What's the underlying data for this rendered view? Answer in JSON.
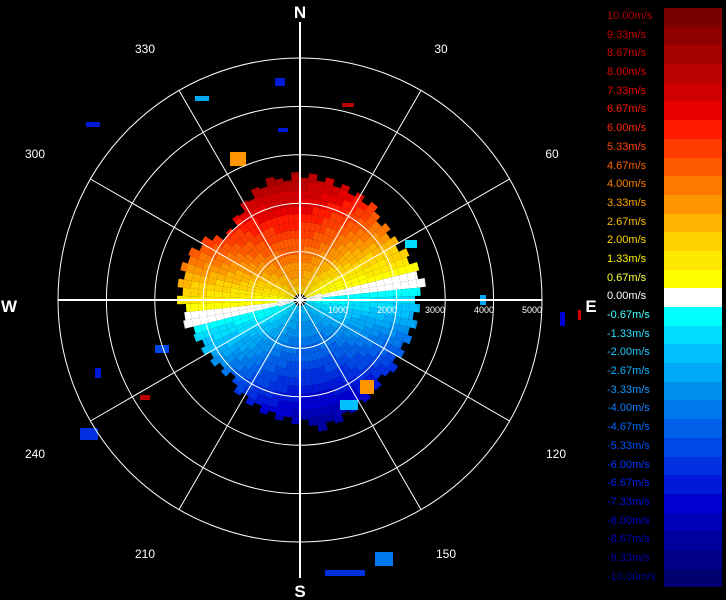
{
  "radar": {
    "cardinals": {
      "north": "N",
      "east": "E",
      "south": "S",
      "west": "W"
    },
    "azimuth_labels": [
      {
        "deg": 30,
        "text": "30"
      },
      {
        "deg": 60,
        "text": "60"
      },
      {
        "deg": 120,
        "text": "120"
      },
      {
        "deg": 150,
        "text": "150"
      },
      {
        "deg": 210,
        "text": "210"
      },
      {
        "deg": 240,
        "text": "240"
      },
      {
        "deg": 300,
        "text": "300"
      },
      {
        "deg": 330,
        "text": "330"
      }
    ],
    "range_labels": [
      "1000",
      "2000",
      "3000",
      "4000",
      "5000"
    ],
    "max_range": 5000
  },
  "legend": {
    "items": [
      {
        "label": "10.00m/s",
        "color": "#7a0000",
        "text_color": "#b00000"
      },
      {
        "label": "9.33m/s",
        "color": "#8e0000",
        "text_color": "#c00000"
      },
      {
        "label": "8.67m/s",
        "color": "#a40000",
        "text_color": "#d00000"
      },
      {
        "label": "8.00m/s",
        "color": "#bb0000",
        "text_color": "#e00000"
      },
      {
        "label": "7.33m/s",
        "color": "#d00000",
        "text_color": "#ee0000"
      },
      {
        "label": "6.67m/s",
        "color": "#e60000",
        "text_color": "#ff1a00"
      },
      {
        "label": "6.00m/s",
        "color": "#ff1a00",
        "text_color": "#ff2a00"
      },
      {
        "label": "5.33m/s",
        "color": "#ff3c00",
        "text_color": "#ff4400"
      },
      {
        "label": "4.67m/s",
        "color": "#ff5a00",
        "text_color": "#ff6200"
      },
      {
        "label": "4.00m/s",
        "color": "#ff7800",
        "text_color": "#ff8000"
      },
      {
        "label": "3.33m/s",
        "color": "#ff9600",
        "text_color": "#ffa000"
      },
      {
        "label": "2.67m/s",
        "color": "#ffb400",
        "text_color": "#ffbe00"
      },
      {
        "label": "2.00m/s",
        "color": "#ffd200",
        "text_color": "#ffd800"
      },
      {
        "label": "1.33m/s",
        "color": "#ffe800",
        "text_color": "#ffee00"
      },
      {
        "label": "0.67m/s",
        "color": "#ffff00",
        "text_color": "#ffff40"
      },
      {
        "label": "0.00m/s",
        "color": "#ffffff",
        "text_color": "#ffffff"
      },
      {
        "label": "-0.67m/s",
        "color": "#00ffff",
        "text_color": "#40ffff"
      },
      {
        "label": "-1.33m/s",
        "color": "#00ddff",
        "text_color": "#30e0ff"
      },
      {
        "label": "-2.00m/s",
        "color": "#00c0ff",
        "text_color": "#20c8ff"
      },
      {
        "label": "-2.67m/s",
        "color": "#00a8f8",
        "text_color": "#10b0ff"
      },
      {
        "label": "-3.33m/s",
        "color": "#0090f0",
        "text_color": "#1098ff"
      },
      {
        "label": "-4.00m/s",
        "color": "#0078ee",
        "text_color": "#1080ff"
      },
      {
        "label": "-4.67m/s",
        "color": "#0060ea",
        "text_color": "#0068ff"
      },
      {
        "label": "-5.33m/s",
        "color": "#0048e6",
        "text_color": "#0050ff"
      },
      {
        "label": "-6.00m/s",
        "color": "#0030e0",
        "text_color": "#0038ff"
      },
      {
        "label": "-6.67m/s",
        "color": "#0018d8",
        "text_color": "#0020f0"
      },
      {
        "label": "-7.33m/s",
        "color": "#0000d0",
        "text_color": "#0010e0"
      },
      {
        "label": "-8.00m/s",
        "color": "#0000b8",
        "text_color": "#0000d0"
      },
      {
        "label": "-8.67m/s",
        "color": "#0000a0",
        "text_color": "#0000c0"
      },
      {
        "label": "-9.33m/s",
        "color": "#000088",
        "text_color": "#0000b0"
      },
      {
        "label": "-10.00m/s",
        "color": "#000070",
        "text_color": "#0000a0"
      }
    ]
  },
  "colors": {
    "background": "#000000",
    "grid": "#ffffff"
  }
}
